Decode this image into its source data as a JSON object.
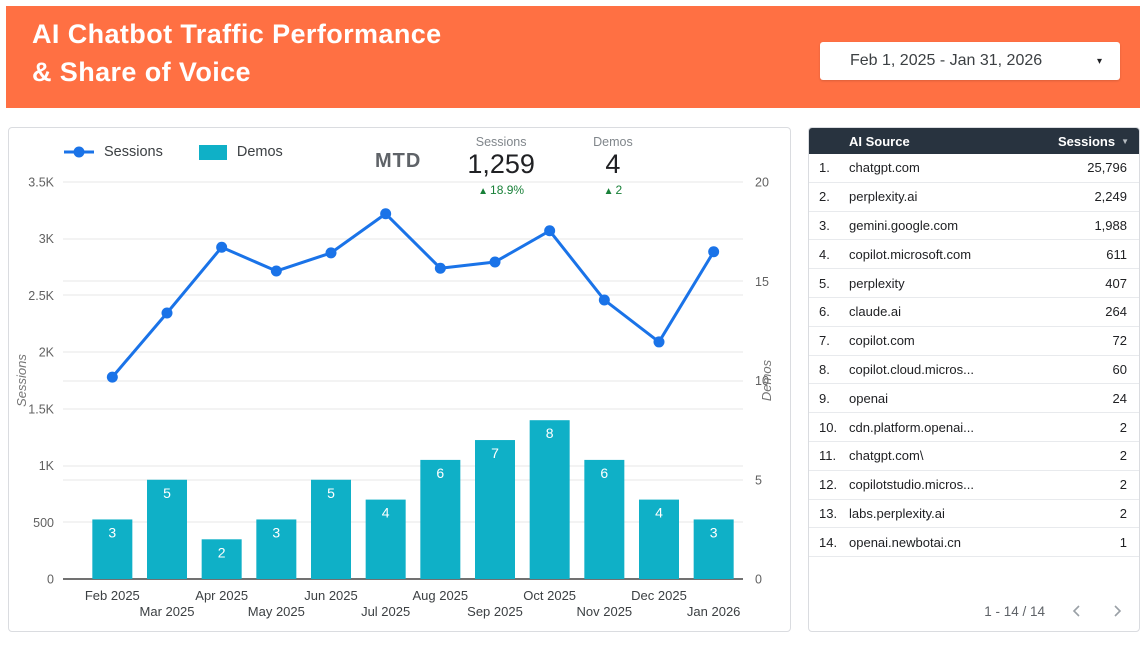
{
  "colors": {
    "header_bg": "#ff7043",
    "bar_teal": "#0fb0c7",
    "line_blue": "#1a73e8",
    "delta_green": "#188038",
    "table_header_bg": "#28333f"
  },
  "header": {
    "title_line1": "AI Chatbot Traffic Performance",
    "title_line2": "& Share of Voice",
    "date_range": "Feb 1, 2025 - Jan 31, 2026"
  },
  "scorecard": {
    "period_label": "MTD",
    "metrics": [
      {
        "name": "Sessions",
        "value": "1,259",
        "delta": "18.9%"
      },
      {
        "name": "Demos",
        "value": "4",
        "delta": "2"
      }
    ]
  },
  "chart_data": {
    "type": "combo",
    "categories": [
      "Feb 2025",
      "Mar 2025",
      "Apr 2025",
      "May 2025",
      "Jun 2025",
      "Jul 2025",
      "Aug 2025",
      "Sep 2025",
      "Oct 2025",
      "Nov 2025",
      "Dec 2025",
      "Jan 2026"
    ],
    "series": [
      {
        "name": "Sessions",
        "chart": "line",
        "axis": "left",
        "color": "#1a73e8",
        "values": [
          1780,
          2345,
          2925,
          2715,
          2875,
          3220,
          2740,
          2795,
          3070,
          2460,
          2090,
          2885
        ]
      },
      {
        "name": "Demos",
        "chart": "bar",
        "axis": "right",
        "color": "#0fb0c7",
        "values": [
          3,
          5,
          2,
          3,
          5,
          4,
          6,
          7,
          8,
          6,
          4,
          3
        ]
      }
    ],
    "left_axis": {
      "title": "Sessions",
      "min": 0,
      "max": 3500,
      "ticks": [
        {
          "v": 0,
          "label": "0"
        },
        {
          "v": 500,
          "label": "500"
        },
        {
          "v": 1000,
          "label": "1K"
        },
        {
          "v": 1500,
          "label": "1.5K"
        },
        {
          "v": 2000,
          "label": "2K"
        },
        {
          "v": 2500,
          "label": "2.5K"
        },
        {
          "v": 3000,
          "label": "3K"
        },
        {
          "v": 3500,
          "label": "3.5K"
        }
      ]
    },
    "right_axis": {
      "title": "Demos",
      "min": 0,
      "max": 20,
      "ticks": [
        {
          "v": 0,
          "label": "0"
        },
        {
          "v": 5,
          "label": "5"
        },
        {
          "v": 10,
          "label": "10"
        },
        {
          "v": 15,
          "label": "15"
        },
        {
          "v": 20,
          "label": "20"
        }
      ]
    },
    "grid": true,
    "legend_position": "top-left",
    "bar_labels_shown": true
  },
  "table": {
    "columns": [
      "AI Source",
      "Sessions"
    ],
    "sort": {
      "column": "Sessions",
      "direction": "desc"
    },
    "rows": [
      {
        "rank": "1.",
        "source": "chatgpt.com",
        "sessions": "25,796"
      },
      {
        "rank": "2.",
        "source": "perplexity.ai",
        "sessions": "2,249"
      },
      {
        "rank": "3.",
        "source": "gemini.google.com",
        "sessions": "1,988"
      },
      {
        "rank": "4.",
        "source": "copilot.microsoft.com",
        "sessions": "611"
      },
      {
        "rank": "5.",
        "source": "perplexity",
        "sessions": "407"
      },
      {
        "rank": "6.",
        "source": "claude.ai",
        "sessions": "264"
      },
      {
        "rank": "7.",
        "source": "copilot.com",
        "sessions": "72"
      },
      {
        "rank": "8.",
        "source": "copilot.cloud.micros...",
        "sessions": "60"
      },
      {
        "rank": "9.",
        "source": "openai",
        "sessions": "24"
      },
      {
        "rank": "10.",
        "source": "cdn.platform.openai...",
        "sessions": "2"
      },
      {
        "rank": "11.",
        "source": "chatgpt.com\\",
        "sessions": "2"
      },
      {
        "rank": "12.",
        "source": "copilotstudio.micros...",
        "sessions": "2"
      },
      {
        "rank": "13.",
        "source": "labs.perplexity.ai",
        "sessions": "2"
      },
      {
        "rank": "14.",
        "source": "openai.newbotai.cn",
        "sessions": "1"
      }
    ],
    "pagination": "1 - 14 / 14"
  }
}
